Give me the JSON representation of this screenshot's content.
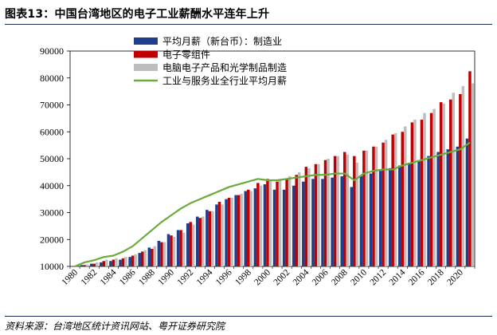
{
  "header": {
    "title": "图表13：中国台湾地区的电子工业薪酬水平连年上升"
  },
  "footer": {
    "source": "资料来源：台湾地区统计资讯网站、粤开证券研究院"
  },
  "colors": {
    "series1": "#1f3f8c",
    "series2": "#c00000",
    "series3": "#bdbdbd",
    "series4": "#6aab3c",
    "rule": "#1f2d5a"
  },
  "chart_data": {
    "type": "bar",
    "x": [
      1980,
      1981,
      1982,
      1983,
      1984,
      1985,
      1986,
      1987,
      1988,
      1989,
      1990,
      1991,
      1992,
      1993,
      1994,
      1995,
      1996,
      1997,
      1998,
      1999,
      2000,
      2001,
      2002,
      2003,
      2004,
      2005,
      2006,
      2007,
      2008,
      2009,
      2010,
      2011,
      2012,
      2013,
      2014,
      2015,
      2016,
      2017,
      2018,
      2019,
      2020,
      2021
    ],
    "x_tick_labels": [
      "1980",
      "1982",
      "1984",
      "1986",
      "1988",
      "1990",
      "1992",
      "1994",
      "1996",
      "1998",
      "2000",
      "2002",
      "2004",
      "2006",
      "2008",
      "2010",
      "2012",
      "2014",
      "2016",
      "2018",
      "2020"
    ],
    "ylim": [
      10000,
      90000
    ],
    "y_ticks": [
      10000,
      20000,
      30000,
      40000,
      50000,
      60000,
      70000,
      80000,
      90000
    ],
    "y_tick_labels": [
      "10000",
      "20000",
      "30000",
      "40000",
      "50000",
      "60000",
      "70000",
      "80000",
      "90000"
    ],
    "legend_position": "top-center",
    "series": [
      {
        "name": "平均月薪（新台币）：制造业",
        "type": "bar",
        "values": [
          10000,
          10500,
          11000,
          11500,
          12000,
          12500,
          13500,
          15000,
          17000,
          19500,
          22000,
          23500,
          26000,
          28500,
          31000,
          33000,
          35000,
          36500,
          38000,
          39000,
          40500,
          38500,
          38500,
          40000,
          41500,
          42500,
          42500,
          43000,
          43500,
          39500,
          43500,
          44500,
          45500,
          46500,
          47500,
          48500,
          49500,
          51000,
          52500,
          53500,
          54500,
          57500
        ]
      },
      {
        "name": "电子零组件",
        "type": "bar",
        "values": [
          10000,
          10500,
          11000,
          12000,
          12500,
          13000,
          14000,
          15500,
          16500,
          19000,
          21500,
          23500,
          26500,
          28000,
          30500,
          34000,
          35500,
          36500,
          38500,
          41000,
          42500,
          41500,
          42500,
          44000,
          47000,
          48000,
          49500,
          51000,
          52500,
          51000,
          53000,
          54500,
          56000,
          59000,
          60000,
          63500,
          64500,
          67000,
          71000,
          72000,
          74000,
          82500
        ]
      },
      {
        "name": "电脑电子产品和光学制品制造",
        "type": "bar",
        "values": [
          10000,
          10700,
          11500,
          12500,
          13000,
          13500,
          14500,
          16000,
          17500,
          19000,
          21000,
          22500,
          25500,
          28500,
          30500,
          33000,
          35500,
          37000,
          38000,
          40000,
          42000,
          42500,
          43500,
          45000,
          46500,
          48000,
          50000,
          51000,
          51500,
          48500,
          53000,
          54500,
          57000,
          59500,
          62000,
          64500,
          67000,
          68500,
          70500,
          74500,
          77000,
          78000
        ]
      },
      {
        "name": "工业与服务业全行业平均月薪",
        "type": "line",
        "values": [
          10000,
          11500,
          12300,
          13500,
          14000,
          15500,
          17500,
          20500,
          23500,
          26500,
          29000,
          31500,
          33500,
          35000,
          36500,
          38000,
          39500,
          40500,
          41500,
          42500,
          42000,
          42000,
          42500,
          43000,
          43500,
          44000,
          44000,
          44500,
          44500,
          42000,
          44500,
          45500,
          46000,
          46000,
          47500,
          48500,
          49500,
          50500,
          51500,
          52500,
          53500,
          56000
        ]
      }
    ]
  }
}
